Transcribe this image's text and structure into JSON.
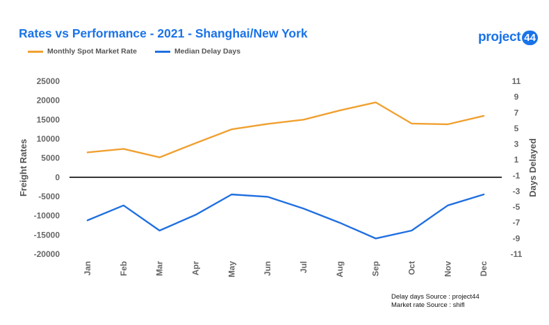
{
  "chart_data": {
    "type": "line",
    "title": "Rates vs Performance - 2021 - Shanghai/New York",
    "categories": [
      "Jan",
      "Feb",
      "Mar",
      "Apr",
      "May",
      "Jun",
      "Jul",
      "Aug",
      "Sep",
      "Oct",
      "Nov",
      "Dec"
    ],
    "series": [
      {
        "name": "Monthly Spot Market Rate",
        "axis": "left",
        "color": "#f0a030",
        "values": [
          6500,
          7400,
          5200,
          8900,
          12500,
          13900,
          15000,
          17400,
          19500,
          14000,
          13800,
          16000
        ]
      },
      {
        "name": "Median Delay Days",
        "axis": "right",
        "color": "#1f6fe0",
        "values": [
          -6.7,
          -4.8,
          -8.0,
          -6.0,
          -3.4,
          -3.7,
          -5.2,
          -7.0,
          -9.0,
          -8.0,
          -4.8,
          -3.4
        ]
      }
    ],
    "ylabel": "Freight Rates",
    "y2label": "Days Delayed",
    "ylim": [
      -20000,
      25000
    ],
    "y2lim": [
      -11,
      11
    ],
    "yticks": [
      25000,
      20000,
      15000,
      10000,
      5000,
      0,
      -5000,
      -10000,
      -15000,
      -20000
    ],
    "y2ticks": [
      11,
      9,
      7,
      5,
      3,
      1,
      -1,
      -3,
      -5,
      -7,
      -9,
      -11
    ],
    "zero_line_color": "#000000",
    "grid": false,
    "legend": "top-left"
  },
  "logo": {
    "text": "project",
    "badge": "44"
  },
  "notes": [
    "Delay days Source : project44",
    "Market rate Source : shifl"
  ]
}
